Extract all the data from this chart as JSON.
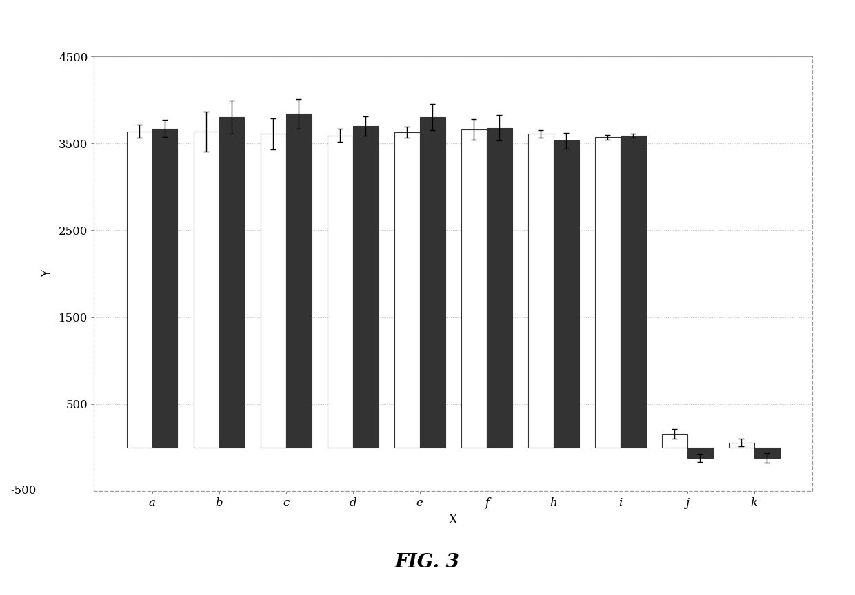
{
  "categories": [
    "a",
    "b",
    "c",
    "d",
    "e",
    "f",
    "h",
    "i",
    "j",
    "k"
  ],
  "white_bars": [
    3640,
    3640,
    3610,
    3590,
    3630,
    3660,
    3610,
    3570,
    155,
    55
  ],
  "dark_bars": [
    3670,
    3800,
    3840,
    3700,
    3800,
    3680,
    3530,
    3590,
    -120,
    -120
  ],
  "white_err": [
    75,
    230,
    180,
    75,
    65,
    120,
    45,
    25,
    55,
    45
  ],
  "dark_err": [
    100,
    190,
    170,
    110,
    150,
    150,
    90,
    25,
    45,
    55
  ],
  "ylim": [
    -500,
    4500
  ],
  "yticks": [
    500,
    1500,
    2500,
    3500,
    4500
  ],
  "ytick_labels": [
    "500",
    "1500",
    "2500",
    "3500",
    "4500"
  ],
  "xlabel": "X",
  "ylabel": "Y",
  "fig_title": "FIG. 3",
  "white_color": "#ffffff",
  "dark_color": "#333333",
  "bar_width": 0.38,
  "background_color": "#ffffff",
  "edgecolor": "#333333",
  "frame_color": "#aaaaaa",
  "neg500_label": "-500"
}
